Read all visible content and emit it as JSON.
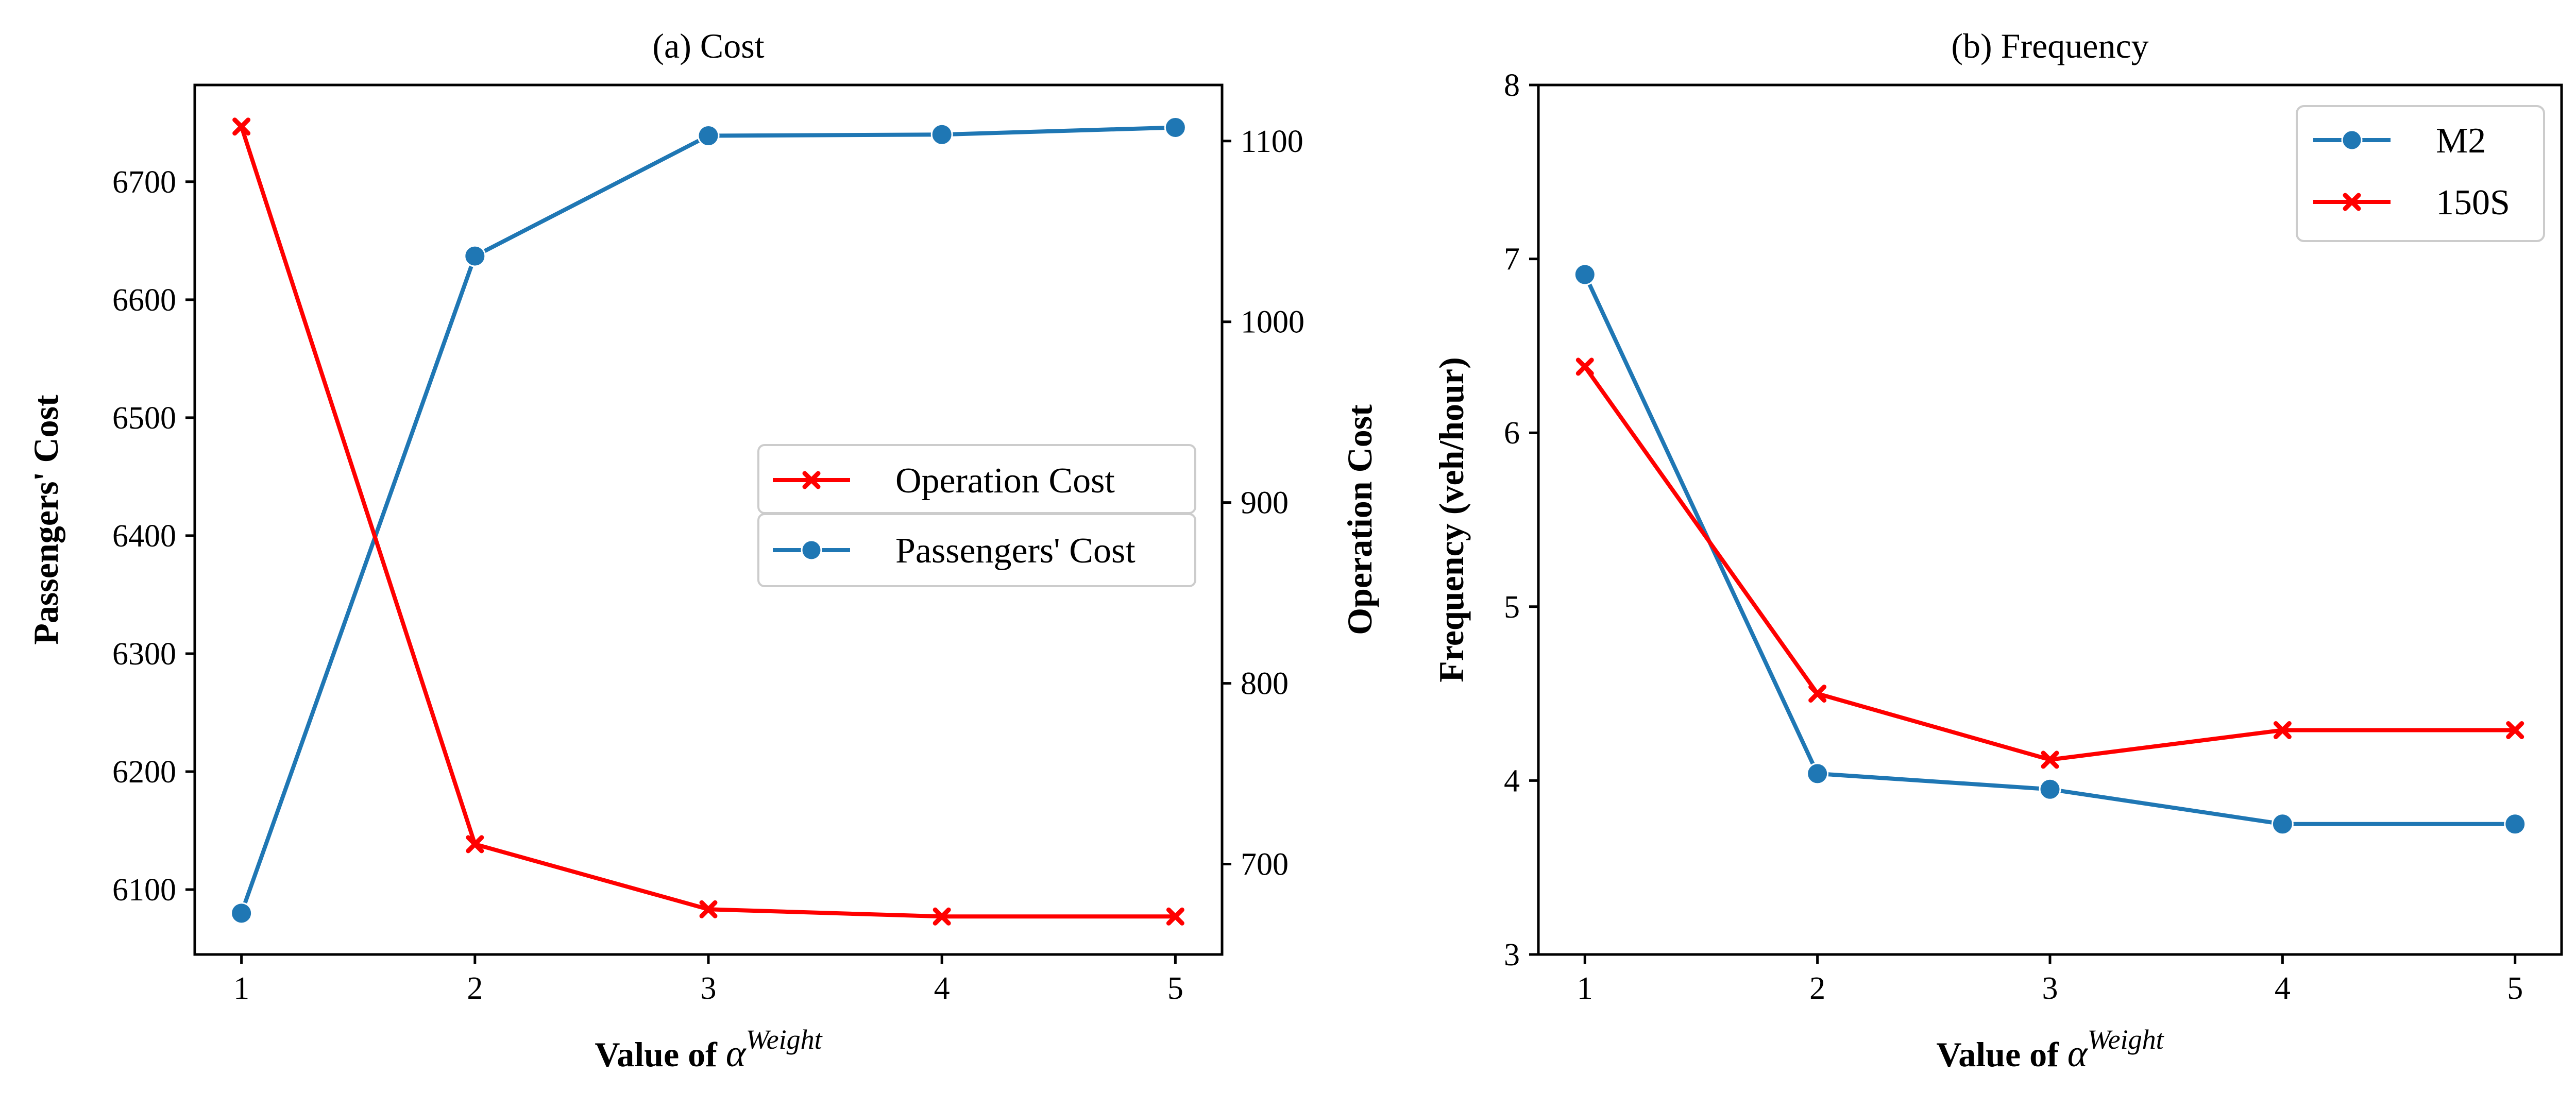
{
  "chart_data": [
    {
      "type": "line",
      "title": "(a) Cost",
      "xlabel_prefix": "Value of ",
      "xlabel_symbol": "α",
      "xlabel_sup": "Weight",
      "ylabel": "Passengers' Cost",
      "ylabel_right": "Operation Cost",
      "x": [
        1,
        2,
        3,
        4,
        5
      ],
      "xlim": [
        0.8,
        5.2
      ],
      "ylim": [
        6045,
        6782
      ],
      "y2lim": [
        650,
        1131
      ],
      "yticks": [
        6100,
        6200,
        6300,
        6400,
        6500,
        6600,
        6700
      ],
      "y2ticks": [
        700,
        800,
        900,
        1000,
        1100
      ],
      "series": [
        {
          "name": "Passengers' Cost",
          "axis": "left",
          "values": [
            6080,
            6637,
            6739,
            6740,
            6746
          ],
          "color": "#1f77b4",
          "marker": "circle"
        },
        {
          "name": "Operation Cost",
          "axis": "right",
          "values": [
            1108,
            711,
            675,
            671,
            671
          ],
          "color": "#ff0000",
          "marker": "x"
        }
      ],
      "legend": {
        "placement": "center-right",
        "order": [
          "Operation Cost",
          "Passengers' Cost"
        ]
      }
    },
    {
      "type": "line",
      "title": "(b) Frequency",
      "xlabel_prefix": "Value of ",
      "xlabel_symbol": "α",
      "xlabel_sup": "Weight",
      "ylabel": "Frequency (veh/hour)",
      "x": [
        1,
        2,
        3,
        4,
        5
      ],
      "xlim": [
        0.8,
        5.2
      ],
      "ylim": [
        3,
        8
      ],
      "yticks": [
        3,
        4,
        5,
        6,
        7,
        8
      ],
      "series": [
        {
          "name": "M2",
          "values": [
            6.91,
            4.04,
            3.95,
            3.75,
            3.75
          ],
          "color": "#1f77b4",
          "marker": "circle"
        },
        {
          "name": "150S",
          "values": [
            6.38,
            4.5,
            4.12,
            4.29,
            4.29
          ],
          "color": "#ff0000",
          "marker": "x"
        }
      ],
      "legend": {
        "placement": "top-right",
        "order": [
          "M2",
          "150S"
        ]
      }
    }
  ]
}
